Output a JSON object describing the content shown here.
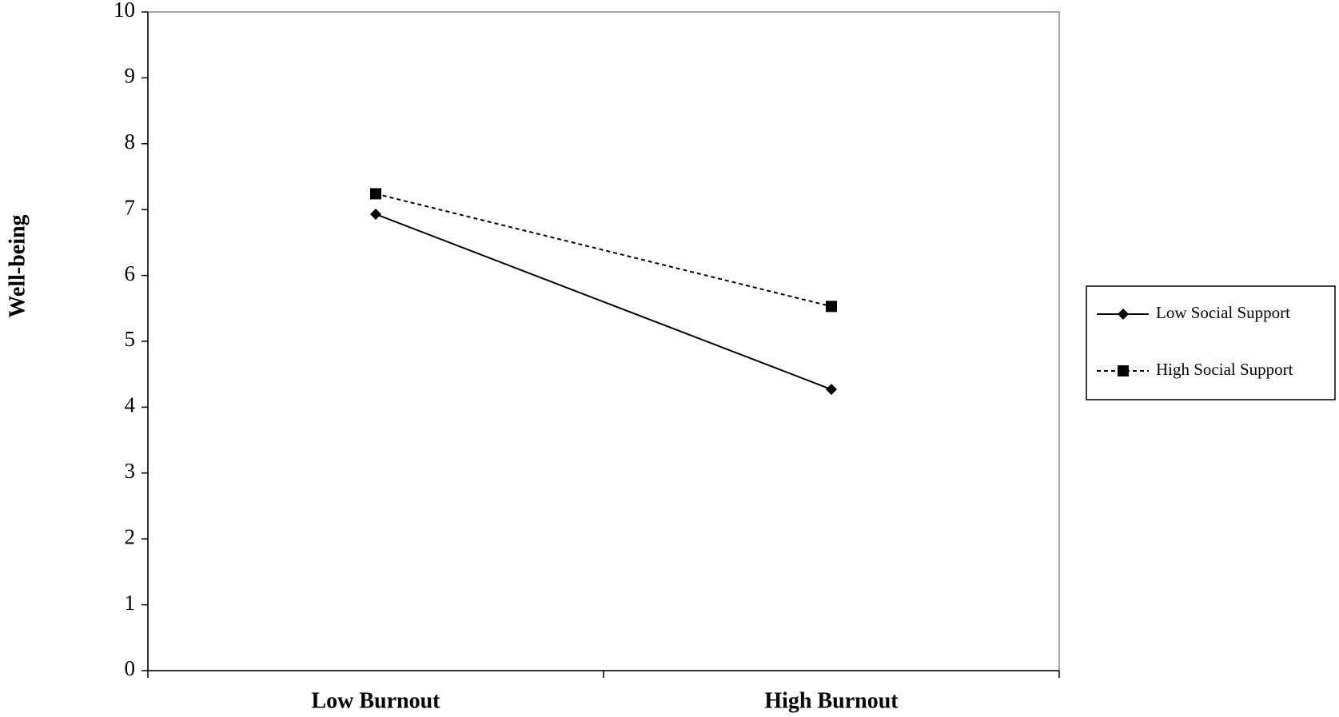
{
  "chart_data": {
    "type": "line",
    "ylabel": "Well-being",
    "categories": [
      "Low Burnout",
      "High Burnout"
    ],
    "series": [
      {
        "name": "Low Social Support",
        "color": "#000000",
        "linestyle": "solid",
        "marker": "diamond",
        "values": [
          6.93,
          4.27
        ]
      },
      {
        "name": "High Social Support",
        "color": "#000000",
        "linestyle": "dashed",
        "marker": "square",
        "values": [
          7.24,
          5.53
        ]
      }
    ],
    "ylim": [
      0,
      10
    ],
    "yticks": [
      0,
      1,
      2,
      3,
      4,
      5,
      6,
      7,
      8,
      9,
      10
    ],
    "grid": false,
    "legend": "right"
  }
}
